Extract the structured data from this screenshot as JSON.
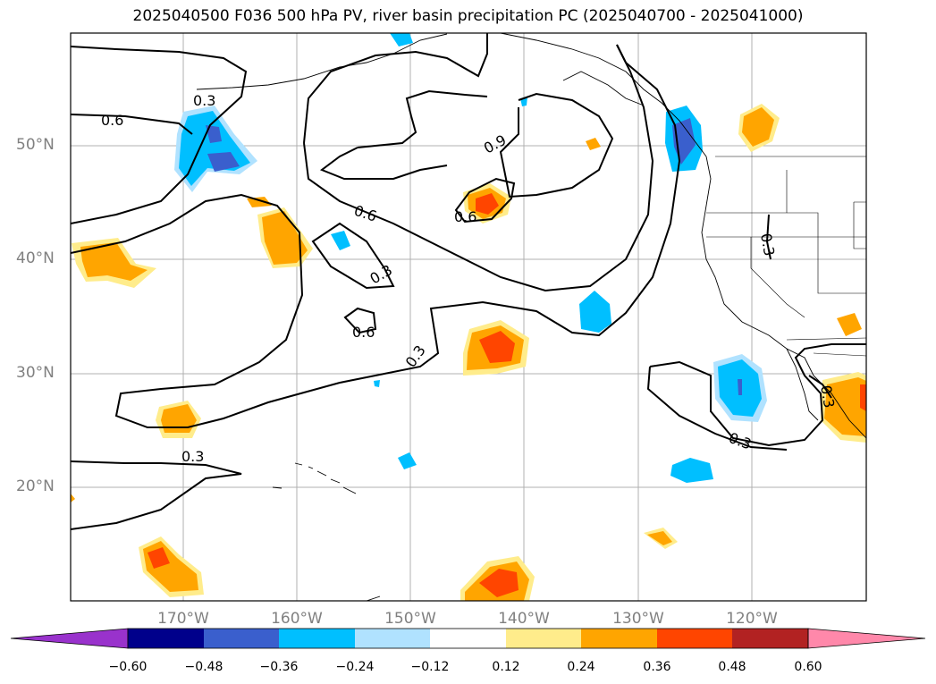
{
  "title": "2025040500 F036 500 hPa PV, river basin precipitation PC (2025040700 - 2025041000)",
  "lat_labels": [
    "50°N",
    "40°N",
    "30°N",
    "20°N"
  ],
  "lon_labels": [
    "170°W",
    "160°W",
    "150°W",
    "140°W",
    "130°W",
    "120°W"
  ],
  "contour_labels": [
    "0.3",
    "0.6",
    "0.9",
    "0.6",
    "0.6",
    "0.3",
    "0.6",
    "0.3",
    "0.3",
    "0.3",
    "0.3",
    "0.3"
  ],
  "colorbar": {
    "colors": [
      "#9932cc",
      "#00008b",
      "#3a5fcd",
      "#00bfff",
      "#b0e2ff",
      "#ffffff",
      "#ffec8b",
      "#ffa500",
      "#ff4500",
      "#b22222",
      "#ff88aa"
    ],
    "ticks": [
      "−0.60",
      "−0.48",
      "−0.36",
      "−0.24",
      "−0.12",
      "0.12",
      "0.24",
      "0.36",
      "0.48",
      "0.60"
    ]
  },
  "legend": {
    "positive_color": "#ffa500",
    "negative_color": "#00bfff"
  }
}
